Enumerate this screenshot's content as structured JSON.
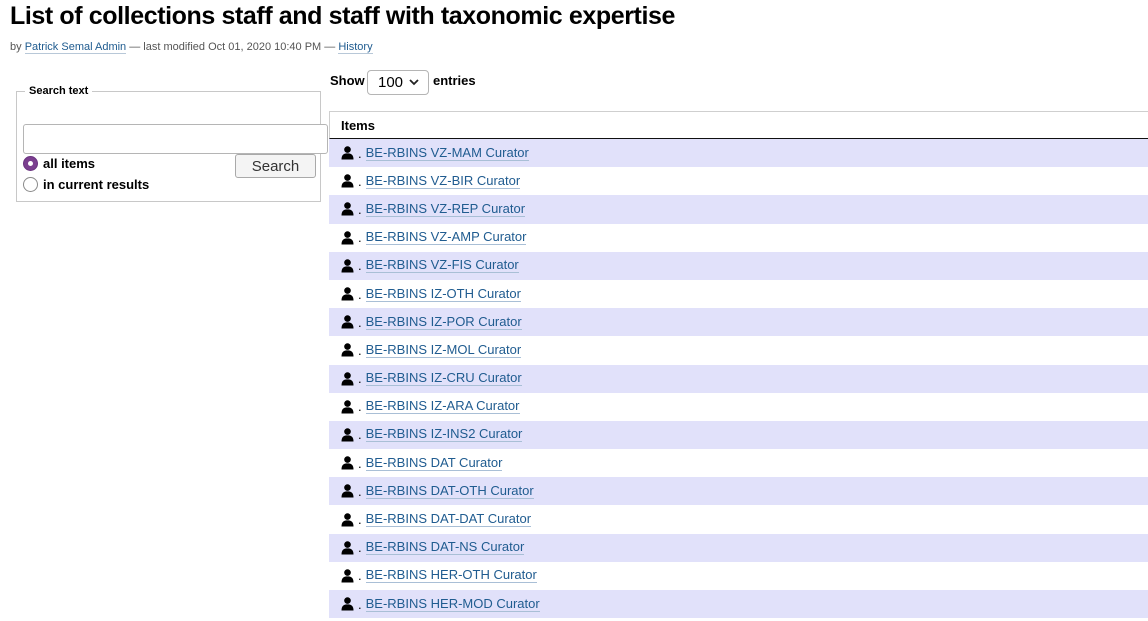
{
  "page": {
    "title": "List of collections staff and staff with taxonomic expertise",
    "byline": {
      "by": "by",
      "author": "Patrick Semal Admin",
      "modified": "— last modified Oct 01, 2020 10:40 PM —",
      "history": "History"
    }
  },
  "search": {
    "legend": "Search text",
    "value": "",
    "placeholder": "",
    "options": [
      {
        "label": "all items",
        "checked": true
      },
      {
        "label": "in current results",
        "checked": false
      }
    ],
    "button_label": "Search"
  },
  "entries": {
    "show_label": "Show",
    "value": "100",
    "entries_label": "entries"
  },
  "table": {
    "header": "Items",
    "separator": ".",
    "icon": "person-icon",
    "rows": [
      "BE-RBINS VZ-MAM Curator",
      "BE-RBINS VZ-BIR Curator",
      "BE-RBINS VZ-REP Curator",
      "BE-RBINS VZ-AMP Curator",
      "BE-RBINS VZ-FIS Curator",
      "BE-RBINS IZ-OTH Curator",
      "BE-RBINS IZ-POR Curator",
      "BE-RBINS IZ-MOL Curator",
      "BE-RBINS IZ-CRU Curator",
      "BE-RBINS IZ-ARA Curator",
      "BE-RBINS IZ-INS2 Curator",
      "BE-RBINS DAT Curator",
      "BE-RBINS DAT-OTH Curator",
      "BE-RBINS DAT-DAT Curator",
      "BE-RBINS DAT-NS Curator",
      "BE-RBINS HER-OTH Curator",
      "BE-RBINS HER-MOD Curator"
    ]
  },
  "colors": {
    "link": "#205c90",
    "row_stripe": "#e1e1fa",
    "radio_checked": "#7b3f8f"
  }
}
